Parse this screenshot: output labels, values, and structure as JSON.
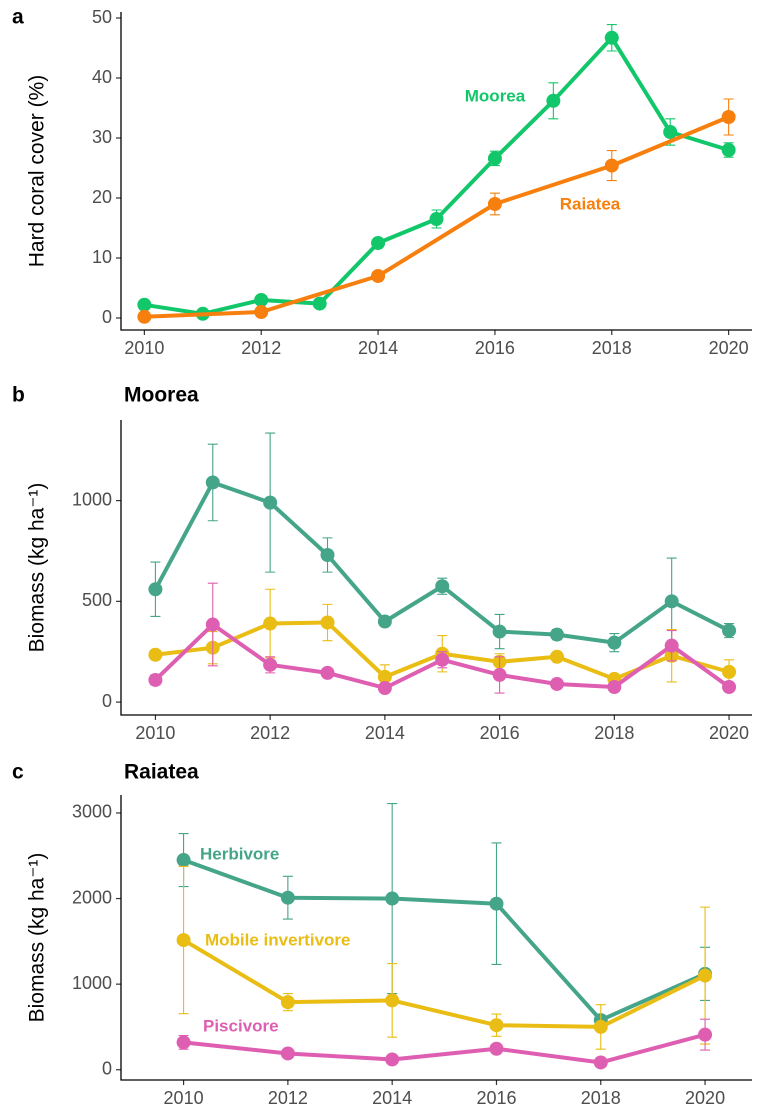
{
  "chart_data": [
    {
      "type": "line",
      "panel_label": "a",
      "y_label": "Hard coral cover (%)",
      "xlim": [
        2009.6,
        2020.4
      ],
      "xticks": [
        2010,
        2012,
        2014,
        2016,
        2018,
        2020
      ],
      "ylim": [
        -2,
        51
      ],
      "yticks": [
        0,
        10,
        20,
        30,
        40,
        50
      ],
      "series": [
        {
          "name": "Moorea",
          "color": "#12c76a",
          "x": [
            2010,
            2011,
            2012,
            2013,
            2014,
            2015,
            2016,
            2017,
            2018,
            2019,
            2020
          ],
          "values": [
            2.2,
            0.7,
            3.0,
            2.4,
            12.5,
            16.5,
            26.6,
            36.2,
            46.7,
            31.0,
            28.0
          ],
          "errors": [
            0.5,
            0.3,
            0.5,
            0.5,
            0.6,
            1.5,
            1.2,
            3.0,
            2.2,
            2.2,
            1.2
          ]
        },
        {
          "name": "Raiatea",
          "color": "#f77f0e",
          "x": [
            2010,
            2012,
            2014,
            2016,
            2018,
            2020
          ],
          "values": [
            0.2,
            1.0,
            7.0,
            19.0,
            25.4,
            33.5
          ],
          "errors": [
            0.2,
            0.3,
            0.5,
            1.8,
            2.5,
            3.0
          ]
        }
      ]
    },
    {
      "type": "line",
      "panel_label": "b",
      "title": "Moorea",
      "y_label": "Biomass  (kg ha⁻¹)",
      "xlim": [
        2009.4,
        2020.4
      ],
      "xticks": [
        2010,
        2012,
        2014,
        2016,
        2018,
        2020
      ],
      "ylim": [
        -64,
        1400
      ],
      "yticks": [
        0,
        500,
        1000
      ],
      "series": [
        {
          "name": "Herbivore",
          "color": "#45a589",
          "x": [
            2010,
            2011,
            2012,
            2013,
            2014,
            2015,
            2016,
            2017,
            2018,
            2019,
            2020
          ],
          "values": [
            560,
            1090,
            990,
            730,
            400,
            575,
            350,
            335,
            295,
            500,
            355
          ],
          "errors": [
            135,
            190,
            345,
            85,
            20,
            40,
            85,
            25,
            45,
            215,
            35
          ]
        },
        {
          "name": "Mobile invertivore",
          "color": "#e9bd14",
          "x": [
            2010,
            2011,
            2012,
            2013,
            2014,
            2015,
            2016,
            2017,
            2018,
            2019,
            2020
          ],
          "values": [
            235,
            270,
            390,
            395,
            125,
            240,
            200,
            225,
            115,
            230,
            150
          ],
          "errors": [
            15,
            80,
            170,
            90,
            60,
            90,
            40,
            20,
            20,
            130,
            60
          ]
        },
        {
          "name": "Piscivore",
          "color": "#de5fb1",
          "x": [
            2010,
            2011,
            2012,
            2013,
            2014,
            2015,
            2016,
            2017,
            2018,
            2019,
            2020
          ],
          "values": [
            110,
            385,
            185,
            145,
            70,
            210,
            135,
            90,
            75,
            280,
            75
          ],
          "errors": [
            25,
            205,
            40,
            15,
            10,
            40,
            90,
            10,
            15,
            75,
            15
          ]
        }
      ]
    },
    {
      "type": "line",
      "panel_label": "c",
      "title": "Raiatea",
      "y_label": "Biomass  (kg ha⁻¹)",
      "xlim": [
        2008.8,
        2020.9
      ],
      "xticks": [
        2010,
        2012,
        2014,
        2016,
        2018,
        2020
      ],
      "ylim": [
        -120,
        3210
      ],
      "yticks": [
        0,
        1000,
        2000,
        3000
      ],
      "series": [
        {
          "name": "Herbivore",
          "color": "#45a589",
          "x": [
            2010,
            2012,
            2014,
            2016,
            2018,
            2020
          ],
          "values": [
            2450,
            2010,
            2000,
            1940,
            580,
            1120
          ],
          "errors": [
            310,
            250,
            1110,
            710,
            50,
            310
          ]
        },
        {
          "name": "Mobile invertivore",
          "color": "#e9bd14",
          "x": [
            2010,
            2012,
            2014,
            2016,
            2018,
            2020
          ],
          "values": [
            1515,
            790,
            810,
            520,
            500,
            1100
          ],
          "errors": [
            860,
            100,
            430,
            130,
            260,
            800
          ]
        },
        {
          "name": "Piscivore",
          "color": "#de5fb1",
          "x": [
            2010,
            2012,
            2014,
            2016,
            2018,
            2020
          ],
          "values": [
            320,
            190,
            120,
            245,
            85,
            410
          ],
          "errors": [
            80,
            30,
            20,
            30,
            20,
            180
          ]
        }
      ]
    }
  ]
}
